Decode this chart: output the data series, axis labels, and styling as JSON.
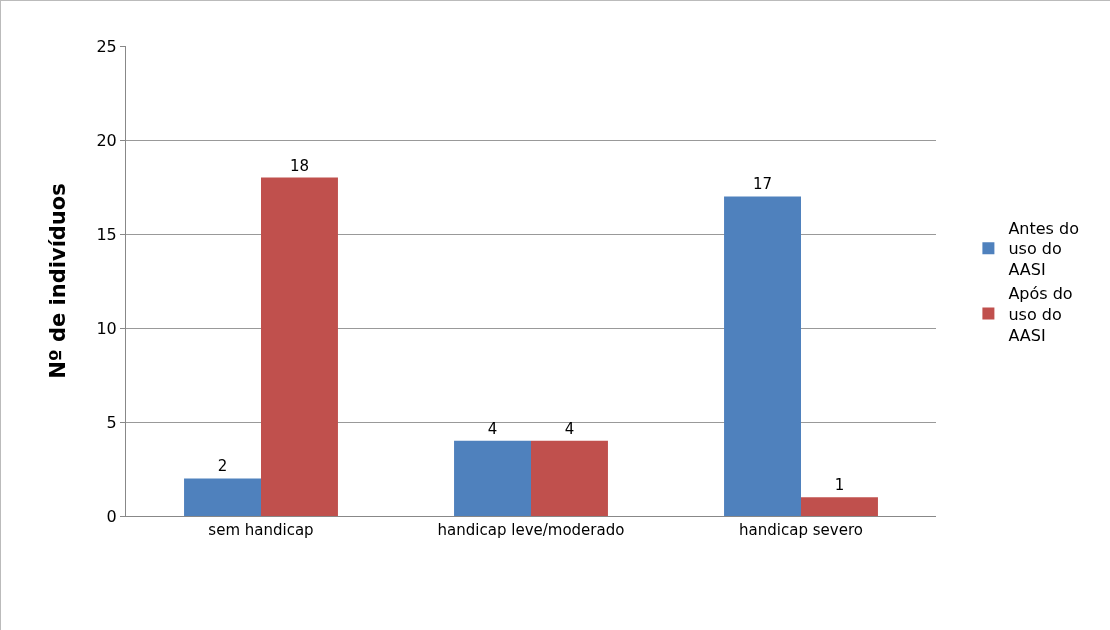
{
  "chart_data": {
    "type": "bar",
    "ylabel": "Nº de indivíduos",
    "categories": [
      "sem handicap",
      "handicap leve/moderado",
      "handicap severo"
    ],
    "series": [
      {
        "name": "Antes do uso do AASI",
        "color": "#4f81bd",
        "values": [
          2,
          4,
          17
        ]
      },
      {
        "name": "Após do uso do AASI",
        "color": "#c0504d",
        "values": [
          18,
          4,
          1
        ]
      }
    ],
    "ylim": [
      0,
      25
    ],
    "yticks": [
      0,
      5,
      10,
      15,
      20,
      25
    ],
    "grid": "y",
    "legend": "right",
    "data_labels": true
  }
}
